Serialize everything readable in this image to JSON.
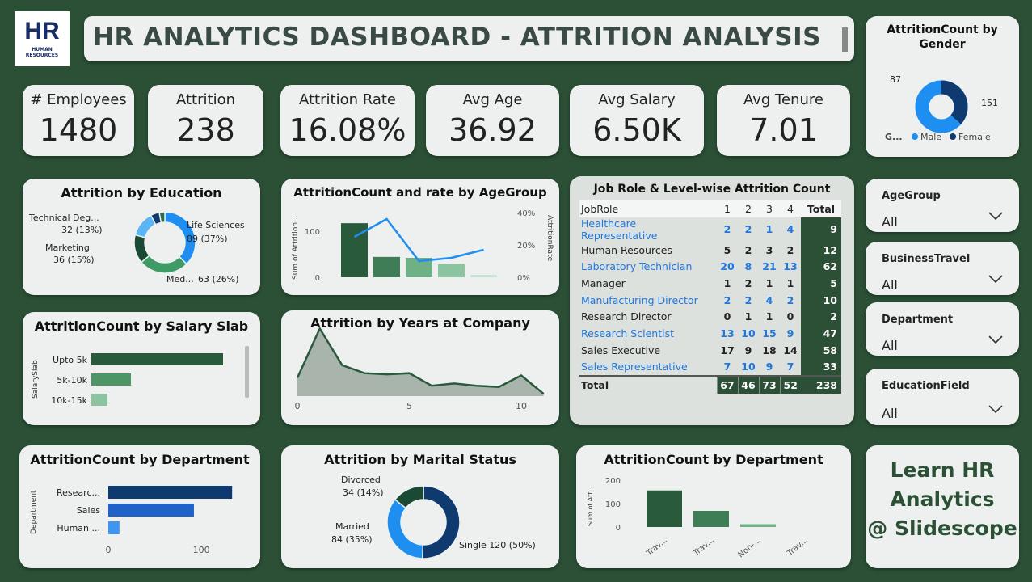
{
  "logo": {
    "letters": "HR",
    "caption": "HUMAN RESOURCES"
  },
  "header": {
    "title": "HR ANALYTICS DASHBOARD - ATTRITION ANALYSIS"
  },
  "kpis": [
    {
      "label": "# Employees",
      "value": "1480"
    },
    {
      "label": "Attrition",
      "value": "238"
    },
    {
      "label": "Attrition Rate",
      "value": "16.08%"
    },
    {
      "label": "Avg Age",
      "value": "36.92"
    },
    {
      "label": "Avg Salary",
      "value": "6.50K"
    },
    {
      "label": "Avg Tenure",
      "value": "7.01"
    }
  ],
  "gender": {
    "title": "AttritionCount by Gender",
    "legend_title": "G...",
    "male_label": "Male",
    "female_label": "Female",
    "male_value": "151",
    "female_value": "87",
    "colors": {
      "male": "#1f8ef1",
      "female": "#0f3a70"
    }
  },
  "slicers": [
    {
      "label": "AgeGroup",
      "value": "All"
    },
    {
      "label": "BusinessTravel",
      "value": "All"
    },
    {
      "label": "Department",
      "value": "All"
    },
    {
      "label": "EducationField",
      "value": "All"
    }
  ],
  "promo": {
    "line1": "Learn HR",
    "line2": "Analytics",
    "line3": "@ Slidescope"
  },
  "job_table": {
    "title": "Job Role & Level-wise Attrition Count",
    "header_role": "JobRole",
    "header_levels": [
      "1",
      "2",
      "3",
      "4"
    ],
    "header_total": "Total",
    "rows": [
      {
        "role": "Healthcare Representative",
        "v": [
          "2",
          "2",
          "1",
          "4"
        ],
        "total": "9",
        "blue": true
      },
      {
        "role": "Human Resources",
        "v": [
          "5",
          "2",
          "3",
          "2"
        ],
        "total": "12",
        "blue": false
      },
      {
        "role": "Laboratory Technician",
        "v": [
          "20",
          "8",
          "21",
          "13"
        ],
        "total": "62",
        "blue": true
      },
      {
        "role": "Manager",
        "v": [
          "1",
          "2",
          "1",
          "1"
        ],
        "total": "5",
        "blue": false
      },
      {
        "role": "Manufacturing Director",
        "v": [
          "2",
          "2",
          "4",
          "2"
        ],
        "total": "10",
        "blue": true
      },
      {
        "role": "Research Director",
        "v": [
          "0",
          "1",
          "1",
          "0"
        ],
        "total": "2",
        "blue": false
      },
      {
        "role": "Research Scientist",
        "v": [
          "13",
          "10",
          "15",
          "9"
        ],
        "total": "47",
        "blue": true
      },
      {
        "role": "Sales Executive",
        "v": [
          "17",
          "9",
          "18",
          "14"
        ],
        "total": "58",
        "blue": false
      },
      {
        "role": "Sales Representative",
        "v": [
          "7",
          "10",
          "9",
          "7"
        ],
        "total": "33",
        "blue": true
      }
    ],
    "total_row": {
      "role": "Total",
      "v": [
        "67",
        "46",
        "73",
        "52"
      ],
      "total": "238"
    }
  },
  "chart_data": [
    {
      "id": "education",
      "type": "pie",
      "title": "Attrition by Education",
      "slices": [
        {
          "name": "Life Sciences",
          "value": 89,
          "label": "Life Sciences",
          "sub": "89 (37%)",
          "color": "#1f8ef1"
        },
        {
          "name": "Med...",
          "value": 63,
          "label": "Med...",
          "sub": "63 (26%)",
          "color": "#3f9b66"
        },
        {
          "name": "Marketing",
          "value": 36,
          "label": "Marketing",
          "sub": "36 (15%)",
          "color": "#1a4a33"
        },
        {
          "name": "Technical Deg...",
          "value": 32,
          "label": "Technical Deg...",
          "sub": "32 (13%)",
          "color": "#5bb5f5"
        },
        {
          "name": "Other",
          "value": 11,
          "label": "",
          "sub": "",
          "color": "#0f3a70"
        },
        {
          "name": "Other2",
          "value": 7,
          "label": "",
          "sub": "",
          "color": "#2f6b47"
        }
      ]
    },
    {
      "id": "agegroup",
      "type": "bar",
      "title": "AttritionCount and rate by AgeGroup",
      "ylabel": "Sum of Attrition...",
      "y2label": "AttritionRate",
      "yticks": [
        "0",
        "100"
      ],
      "y2ticks": [
        "0%",
        "20%",
        "40%"
      ],
      "ylim": [
        0,
        140
      ],
      "y2lim": [
        0,
        40
      ],
      "values": [
        117,
        44,
        42,
        29,
        5
      ],
      "rates": [
        25,
        36,
        10,
        12,
        17
      ],
      "colors": [
        "#2a5a3c",
        "#3f7d56",
        "#6fb087",
        "#8cc49f",
        "#c5e1cf"
      ]
    },
    {
      "id": "salary",
      "type": "bar",
      "title": "AttritionCount by Salary Slab",
      "ylabel": "SalarySlab",
      "categories": [
        "Upto 5k",
        "5k-10k",
        "10k-15k"
      ],
      "values": [
        163,
        49,
        20
      ],
      "xlim": [
        0,
        180
      ],
      "colors": [
        "#2a5a3c",
        "#4e9465",
        "#8cc49f"
      ]
    },
    {
      "id": "years",
      "type": "area",
      "title": "Attrition by Years at Company",
      "xticks": [
        "0",
        "5",
        "10"
      ],
      "x": [
        0,
        1,
        2,
        3,
        4,
        5,
        6,
        7,
        8,
        9,
        10,
        11
      ],
      "values": [
        16,
        59,
        27,
        20,
        19,
        20,
        9,
        11,
        9,
        8,
        18,
        2
      ],
      "ylim": [
        0,
        65
      ],
      "xlim": [
        0,
        11.3
      ]
    },
    {
      "id": "department",
      "type": "bar",
      "title": "AttritionCount by Department",
      "ylabel": "Department",
      "categories": [
        "Researc...",
        "Sales",
        "Human ..."
      ],
      "values": [
        133,
        92,
        12
      ],
      "xticks": [
        "0",
        "100"
      ],
      "xlim": [
        0,
        145
      ],
      "colors": [
        "#0f3a70",
        "#1f63c9",
        "#3f95f0"
      ]
    },
    {
      "id": "marital",
      "type": "pie",
      "title": "Attrition by Marital Status",
      "slices": [
        {
          "name": "Single",
          "value": 120,
          "label": "Single 120 (50%)",
          "sub": "",
          "color": "#0f3a70"
        },
        {
          "name": "Married",
          "value": 84,
          "label": "Married",
          "sub": "84 (35%)",
          "color": "#1f8ef1"
        },
        {
          "name": "Divorced",
          "value": 34,
          "label": "Divorced",
          "sub": "34 (14%)",
          "color": "#1a4a33"
        }
      ]
    },
    {
      "id": "travel",
      "type": "bar",
      "title": "AttritionCount by Department",
      "ylabel": "Sum of Att...",
      "categories": [
        "Trav...",
        "Trav...",
        "Non-...",
        "Trav..."
      ],
      "values": [
        156,
        69,
        12,
        0
      ],
      "yticks": [
        "0",
        "100",
        "200"
      ],
      "ylim": [
        0,
        200
      ],
      "colors": [
        "#2a5a3c",
        "#3f7d56",
        "#6fb087",
        "#8cc49f"
      ]
    }
  ]
}
